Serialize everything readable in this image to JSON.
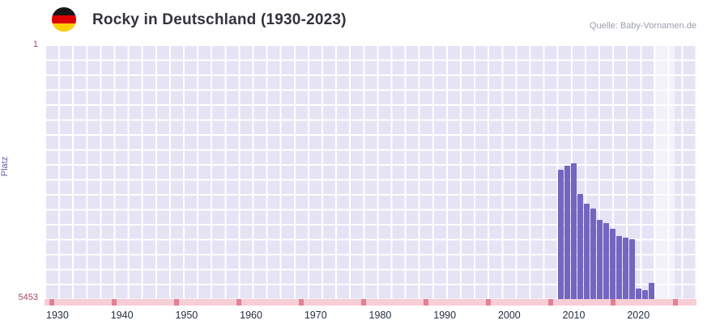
{
  "header": {
    "title": "Rocky in Deutschland (1930-2023)",
    "source": "Quelle: Baby-Vornamen.de",
    "flag_icon": "germany-flag",
    "flag_colors": [
      "#161616",
      "#dd0000",
      "#ffce00"
    ]
  },
  "chart_data": {
    "type": "bar",
    "title": "Rocky in Deutschland (1930-2023)",
    "xlabel": "",
    "ylabel": "Platz",
    "y_axis": {
      "label": "Platz",
      "top_tick": "1",
      "bottom_tick": "5453",
      "range": [
        1,
        5453
      ],
      "inverted": true
    },
    "x_axis": {
      "range": [
        1928,
        2029
      ],
      "tick_years": [
        "1930",
        "1940",
        "1950",
        "1960",
        "1970",
        "1980",
        "1990",
        "2000",
        "2010",
        "2020"
      ]
    },
    "legend": "none",
    "grid": true,
    "series": [
      {
        "year": 2008,
        "rank": 2680
      },
      {
        "year": 2009,
        "rank": 2590
      },
      {
        "year": 2010,
        "rank": 2540
      },
      {
        "year": 2011,
        "rank": 3200
      },
      {
        "year": 2012,
        "rank": 3410
      },
      {
        "year": 2013,
        "rank": 3520
      },
      {
        "year": 2014,
        "rank": 3760
      },
      {
        "year": 2015,
        "rank": 3830
      },
      {
        "year": 2016,
        "rank": 3950
      },
      {
        "year": 2017,
        "rank": 4100
      },
      {
        "year": 2018,
        "rank": 4140
      },
      {
        "year": 2019,
        "rank": 4170
      },
      {
        "year": 2020,
        "rank": 5230
      },
      {
        "year": 2021,
        "rank": 5260
      },
      {
        "year": 2022,
        "rank": 5110
      }
    ],
    "colors": {
      "bar": "#7466c0",
      "plot_background": "#e6e3f5",
      "grid_line": "#ffffff",
      "axis_band": "#f7ced6",
      "axis_band_tick": "#e28193",
      "year_label": "#232d42",
      "rank_label": "#a34868",
      "axis_title": "#6a5ca8"
    }
  }
}
